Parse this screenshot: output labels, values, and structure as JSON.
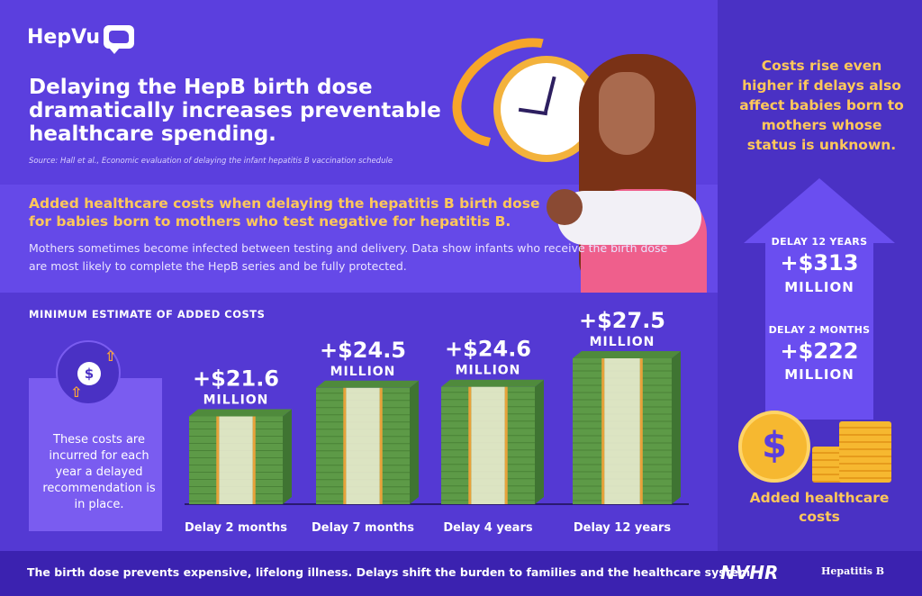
{
  "brand": {
    "name": "HepVu"
  },
  "header": {
    "headline": "Delaying the HepB birth dose dramatically increases preventable healthcare spending.",
    "source": "Source: Hall et al., Economic evaluation of delaying the infant hepatitis B vaccination schedule"
  },
  "section": {
    "title": "Added healthcare costs when delaying the hepatitis B birth dose for babies born to mothers who test negative for hepatitis B.",
    "body": "Mothers sometimes become infected between testing and delivery. Data show infants who receive the birth dose are most likely to complete the HepB series and be fully protected.",
    "chart_title": "MINIMUM ESTIMATE OF ADDED COSTS",
    "note": "These costs are incurred for each year a delayed recommendation is in place."
  },
  "chart_data": {
    "type": "bar",
    "title": "MINIMUM ESTIMATE OF ADDED COSTS",
    "categories": [
      "Delay 2 months",
      "Delay 7 months",
      "Delay 4 years",
      "Delay 12 years"
    ],
    "values": [
      21.6,
      24.5,
      24.6,
      27.5
    ],
    "value_labels": [
      "+$21.6",
      "+$24.5",
      "+$24.6",
      "+$27.5"
    ],
    "unit_label": "MILLION",
    "xlabel": "",
    "ylabel": "",
    "colors": {
      "bill": "#5d9a47",
      "bill_dark": "#3f7432",
      "band": "#f2f1d8",
      "edge": "#e8a23a"
    }
  },
  "sidebar": {
    "intro": "Costs rise even higher if delays also affect babies born to mothers whose status is unknown.",
    "items": [
      {
        "label": "DELAY 12 YEARS",
        "value": "+$313",
        "unit": "MILLION"
      },
      {
        "label": "DELAY 2 MONTHS",
        "value": "+$222",
        "unit": "MILLION"
      }
    ],
    "caption": "Added healthcare costs"
  },
  "footer": {
    "text": "The birth dose prevents expensive, lifelong illness. Delays shift the burden to families and the healthcare system.",
    "partner1": "NVHR",
    "partner2": "Hepatitis B"
  },
  "colors": {
    "primary": "#5b3fde",
    "accent": "#ffc85a",
    "footer": "#3b22b0"
  }
}
